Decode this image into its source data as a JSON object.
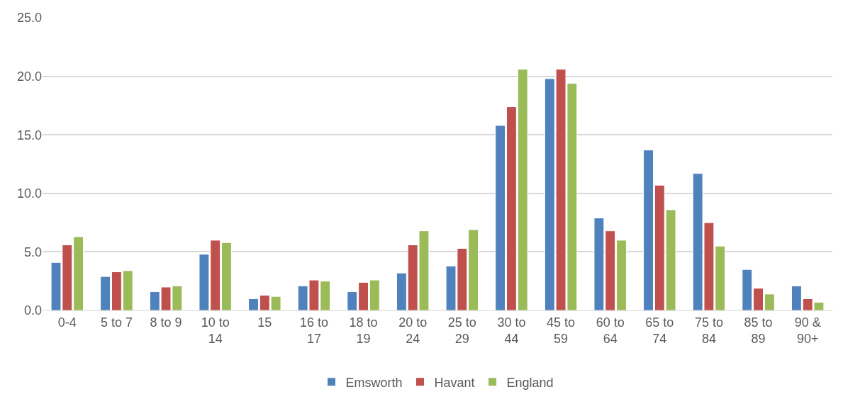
{
  "chart_data": {
    "type": "bar",
    "categories": [
      "0-4",
      "5 to 7",
      "8 to 9",
      "10 to 14",
      "15",
      "16 to 17",
      "18 to 19",
      "20 to 24",
      "25 to 29",
      "30 to 44",
      "45 to 59",
      "60 to 64",
      "65 to 74",
      "75 to 84",
      "85 to 89",
      "90 & 90+"
    ],
    "series": [
      {
        "name": "Emsworth",
        "color": "#4f81bd",
        "values": [
          4.1,
          2.9,
          1.6,
          4.8,
          1.0,
          2.1,
          1.6,
          3.2,
          3.8,
          15.8,
          19.8,
          7.9,
          13.7,
          11.7,
          3.5,
          2.1
        ]
      },
      {
        "name": "Havant",
        "color": "#c0504d",
        "values": [
          5.6,
          3.3,
          2.0,
          6.0,
          1.3,
          2.6,
          2.4,
          5.6,
          5.3,
          17.4,
          20.6,
          6.8,
          10.7,
          7.5,
          1.9,
          1.0
        ]
      },
      {
        "name": "England",
        "color": "#9bbb59",
        "values": [
          6.3,
          3.4,
          2.1,
          5.8,
          1.2,
          2.5,
          2.6,
          6.8,
          6.9,
          20.6,
          19.4,
          6.0,
          8.6,
          5.5,
          1.4,
          0.7
        ]
      }
    ],
    "ylim": [
      0,
      25
    ],
    "yticks": [
      {
        "value": 0,
        "label": "0.0"
      },
      {
        "value": 5,
        "label": "5.0"
      },
      {
        "value": 10,
        "label": "10.0"
      },
      {
        "value": 15,
        "label": "15.0"
      },
      {
        "value": 20,
        "label": "20.0"
      },
      {
        "value": 25,
        "label": "25.0"
      }
    ],
    "grid": "y",
    "legend": "bottom"
  }
}
